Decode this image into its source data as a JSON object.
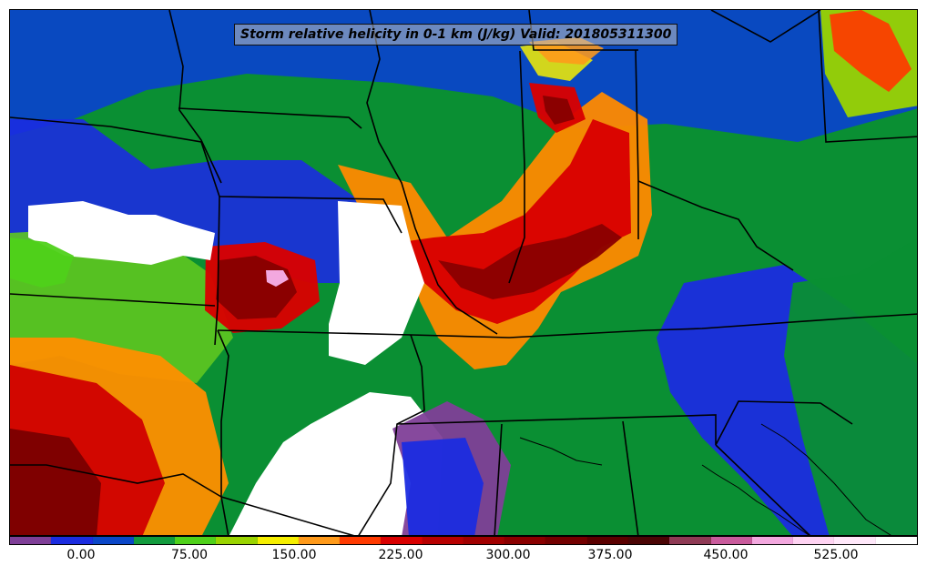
{
  "title": "Storm relative helicity in 0-1 km (J/kg) Valid: 201805311300",
  "colorbar": {
    "colors": [
      "#7f3f98",
      "#1b2ce0",
      "#0a46c8",
      "#129b3d",
      "#4fd11a",
      "#9ad400",
      "#f6ef00",
      "#ff9a1a",
      "#ff3a00",
      "#d90000",
      "#b80000",
      "#a10000",
      "#8a0000",
      "#740000",
      "#5b0000",
      "#4b0505",
      "#8f3a55",
      "#c95b9c",
      "#f3a8df",
      "#fed3f2",
      "#ffe8fa",
      "#ffffff"
    ],
    "tick_labels": [
      "0.00",
      "75.00",
      "150.00",
      "225.00",
      "300.00",
      "375.00",
      "450.00",
      "525.00"
    ]
  }
}
